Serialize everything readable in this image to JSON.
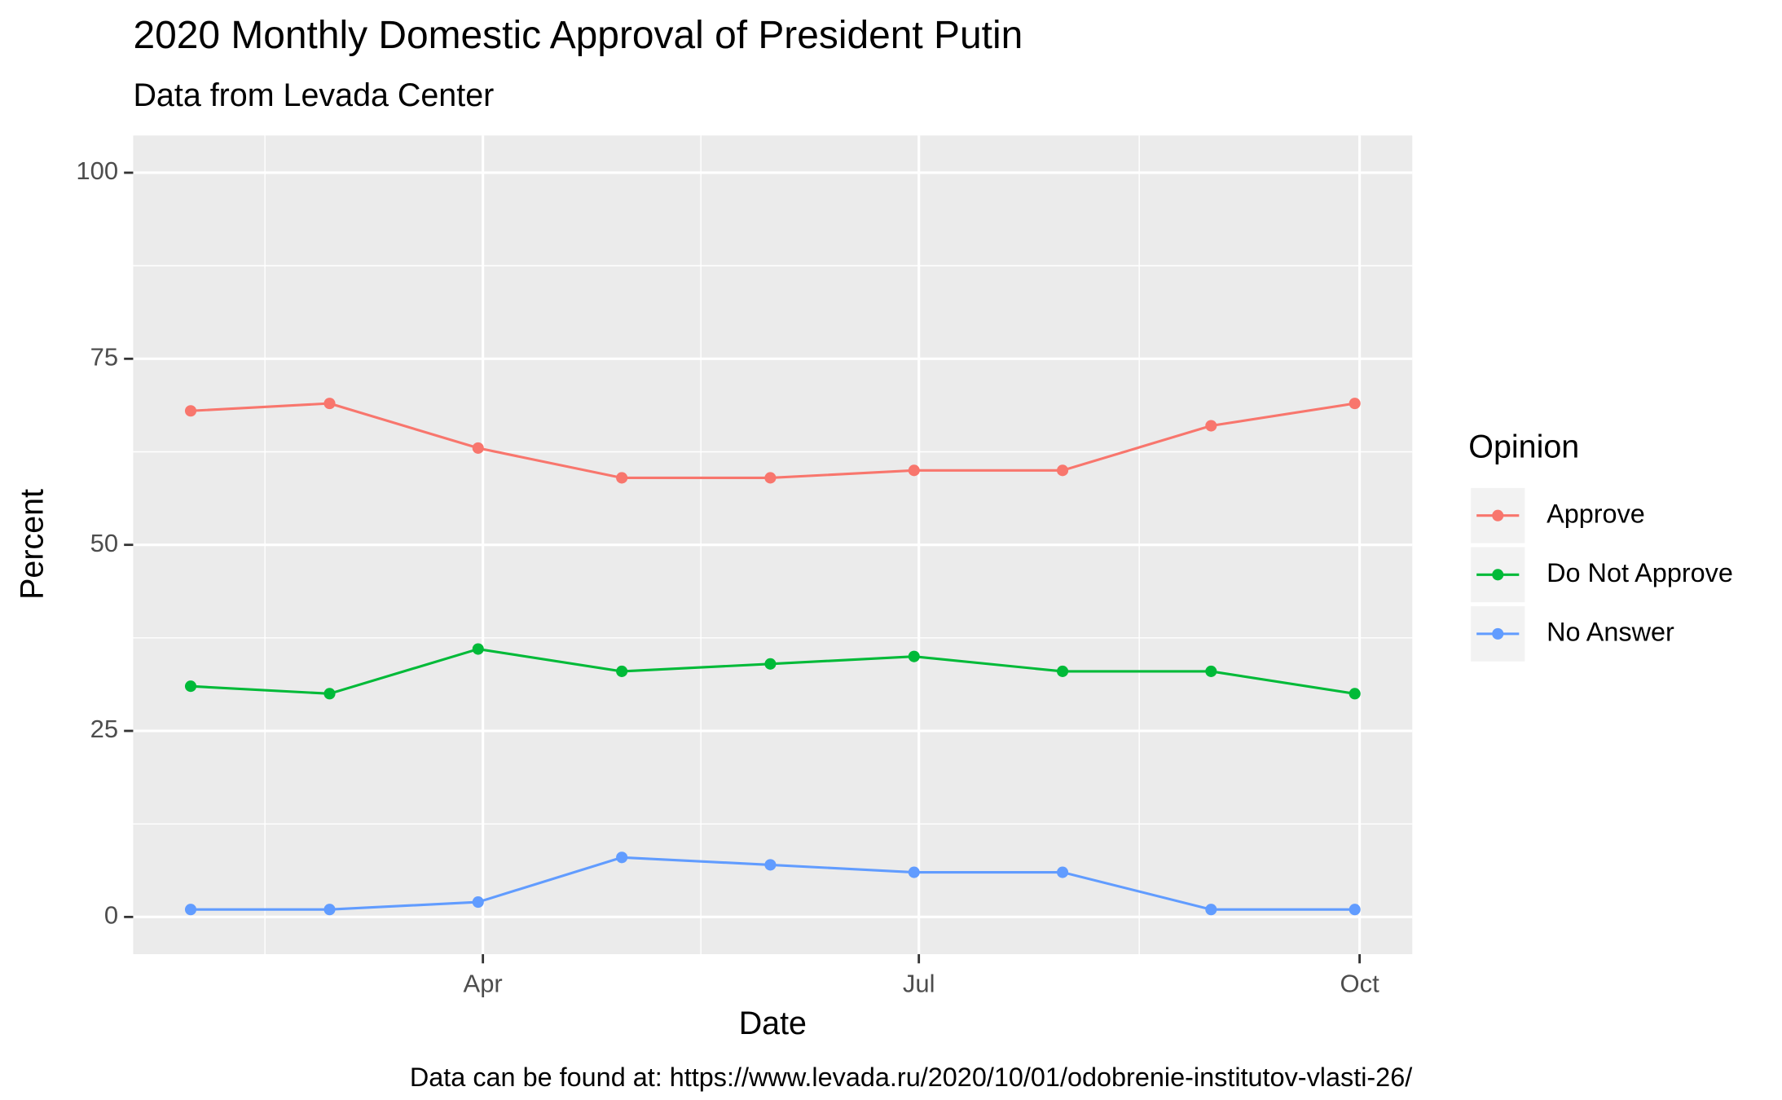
{
  "chart_data": {
    "type": "line",
    "title": "2020 Monthly Domestic Approval of President Putin",
    "subtitle": "Data from Levada Center",
    "x_label": "Date",
    "y_label": "Percent",
    "caption": "Data can be found at: https://www.levada.ru/2020/10/01/odobrenie-institutov-vlasti-26/",
    "legend_title": "Opinion",
    "legend_position": "right",
    "grid": true,
    "x": [
      "2020-01-31",
      "2020-02-29",
      "2020-03-31",
      "2020-04-30",
      "2020-05-31",
      "2020-06-30",
      "2020-07-31",
      "2020-08-31",
      "2020-09-30"
    ],
    "xlim": [
      "2020-01-19",
      "2020-10-12"
    ],
    "xticks": [
      {
        "value": "2020-04-01",
        "label": "Apr"
      },
      {
        "value": "2020-07-01",
        "label": "Jul"
      },
      {
        "value": "2020-10-01",
        "label": "Oct"
      }
    ],
    "ylim": [
      -5,
      105
    ],
    "yticks": [
      0,
      25,
      50,
      75,
      100
    ],
    "series": [
      {
        "name": "Approve",
        "color": "#F8766D",
        "values": [
          68,
          69,
          63,
          59,
          59,
          60,
          60,
          66,
          69
        ]
      },
      {
        "name": "Do Not Approve",
        "color": "#00BA38",
        "values": [
          31,
          30,
          36,
          33,
          34,
          35,
          33,
          33,
          30
        ]
      },
      {
        "name": "No Answer",
        "color": "#619CFF",
        "values": [
          1,
          1,
          2,
          8,
          7,
          6,
          6,
          1,
          1
        ]
      }
    ]
  }
}
